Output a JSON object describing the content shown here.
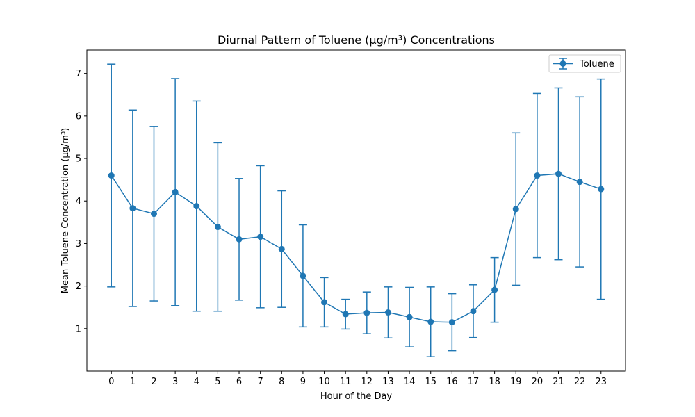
{
  "chart_data": {
    "type": "line",
    "title": "Diurnal Pattern of Toluene (µg/m³) Concentrations",
    "xlabel": "Hour of the Day",
    "ylabel": "Mean Toluene Concentration (µg/m³)",
    "x": [
      0,
      1,
      2,
      3,
      4,
      5,
      6,
      7,
      8,
      9,
      10,
      11,
      12,
      13,
      14,
      15,
      16,
      17,
      18,
      19,
      20,
      21,
      22,
      23
    ],
    "xlim": [
      -1.15,
      24.15
    ],
    "ylim": [
      0.0,
      7.55
    ],
    "yticks": [
      1,
      2,
      3,
      4,
      5,
      6,
      7
    ],
    "grid": false,
    "legend_position": "top-right",
    "series": [
      {
        "name": "Toluene",
        "color": "#1f77b4",
        "marker": "circle",
        "values": [
          4.6,
          3.83,
          3.7,
          4.21,
          3.88,
          3.39,
          3.1,
          3.16,
          2.87,
          2.24,
          1.62,
          1.34,
          1.37,
          1.38,
          1.27,
          1.16,
          1.15,
          1.41,
          1.91,
          3.81,
          4.6,
          4.64,
          4.45,
          4.28
        ],
        "error": [
          2.62,
          2.31,
          2.05,
          2.67,
          2.47,
          1.98,
          1.43,
          1.67,
          1.37,
          1.2,
          0.58,
          0.35,
          0.49,
          0.6,
          0.7,
          0.82,
          0.67,
          0.62,
          0.76,
          1.79,
          1.93,
          2.02,
          2.0,
          2.59
        ]
      }
    ]
  }
}
